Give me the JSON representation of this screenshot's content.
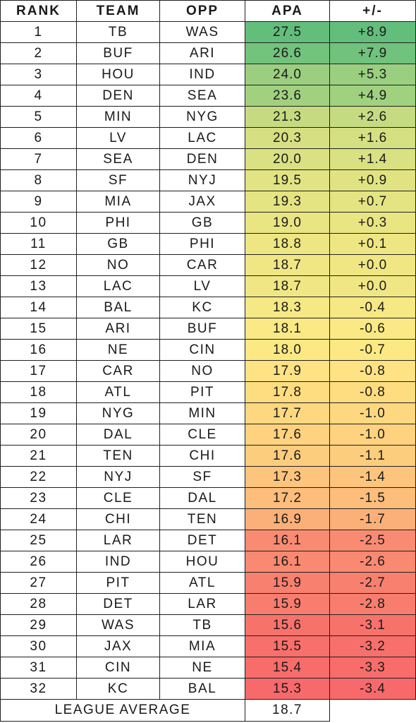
{
  "headers": [
    "RANK",
    "TEAM",
    "OPP",
    "APA",
    "+/-"
  ],
  "rows": [
    {
      "rank": "1",
      "team": "TB",
      "opp": "WAS",
      "apa": "27.5",
      "pm": "+8.9",
      "apa_color": "#63be7b",
      "pm_color": "#63be7b"
    },
    {
      "rank": "2",
      "team": "BUF",
      "opp": "ARI",
      "apa": "26.6",
      "pm": "+7.9",
      "apa_color": "#72c37c",
      "pm_color": "#70c27c"
    },
    {
      "rank": "3",
      "team": "HOU",
      "opp": "IND",
      "apa": "24.0",
      "pm": "+5.3",
      "apa_color": "#9bcf7f",
      "pm_color": "#99cf7f"
    },
    {
      "rank": "4",
      "team": "DEN",
      "opp": "SEA",
      "apa": "23.6",
      "pm": "+4.9",
      "apa_color": "#a1d17f",
      "pm_color": "#a0d17f"
    },
    {
      "rank": "5",
      "team": "MIN",
      "opp": "NYG",
      "apa": "21.3",
      "pm": "+2.6",
      "apa_color": "#c6db81",
      "pm_color": "#c5db81"
    },
    {
      "rank": "6",
      "team": "LV",
      "opp": "LAC",
      "apa": "20.3",
      "pm": "+1.6",
      "apa_color": "#d6e082",
      "pm_color": "#d5e082"
    },
    {
      "rank": "7",
      "team": "SEA",
      "opp": "DEN",
      "apa": "20.0",
      "pm": "+1.4",
      "apa_color": "#dae182",
      "pm_color": "#d9e182"
    },
    {
      "rank": "8",
      "team": "SF",
      "opp": "NYJ",
      "apa": "19.5",
      "pm": "+0.9",
      "apa_color": "#e2e383",
      "pm_color": "#e1e383"
    },
    {
      "rank": "9",
      "team": "MIA",
      "opp": "JAX",
      "apa": "19.3",
      "pm": "+0.7",
      "apa_color": "#e5e483",
      "pm_color": "#e4e483"
    },
    {
      "rank": "10",
      "team": "PHI",
      "opp": "GB",
      "apa": "19.0",
      "pm": "+0.3",
      "apa_color": "#eae583",
      "pm_color": "#eae583"
    },
    {
      "rank": "11",
      "team": "GB",
      "opp": "PHI",
      "apa": "18.8",
      "pm": "+0.1",
      "apa_color": "#eee683",
      "pm_color": "#eee683"
    },
    {
      "rank": "12",
      "team": "NO",
      "opp": "CAR",
      "apa": "18.7",
      "pm": "+0.0",
      "apa_color": "#f0e784",
      "pm_color": "#f0e784"
    },
    {
      "rank": "13",
      "team": "LAC",
      "opp": "LV",
      "apa": "18.7",
      "pm": "+0.0",
      "apa_color": "#f0e784",
      "pm_color": "#f0e784"
    },
    {
      "rank": "14",
      "team": "BAL",
      "opp": "KC",
      "apa": "18.3",
      "pm": "-0.4",
      "apa_color": "#f6e884",
      "pm_color": "#f6e884"
    },
    {
      "rank": "15",
      "team": "ARI",
      "opp": "BUF",
      "apa": "18.1",
      "pm": "-0.6",
      "apa_color": "#fae984",
      "pm_color": "#fae984"
    },
    {
      "rank": "16",
      "team": "NE",
      "opp": "CIN",
      "apa": "18.0",
      "pm": "-0.7",
      "apa_color": "#fde984",
      "pm_color": "#fde984"
    },
    {
      "rank": "17",
      "team": "CAR",
      "opp": "NO",
      "apa": "17.9",
      "pm": "-0.8",
      "apa_color": "#fee283",
      "pm_color": "#fee283"
    },
    {
      "rank": "18",
      "team": "ATL",
      "opp": "PIT",
      "apa": "17.8",
      "pm": "-0.8",
      "apa_color": "#fedd81",
      "pm_color": "#fedd81"
    },
    {
      "rank": "19",
      "team": "NYG",
      "opp": "MIN",
      "apa": "17.7",
      "pm": "-1.0",
      "apa_color": "#fed880",
      "pm_color": "#fed880"
    },
    {
      "rank": "20",
      "team": "DAL",
      "opp": "CLE",
      "apa": "17.6",
      "pm": "-1.0",
      "apa_color": "#fed27f",
      "pm_color": "#fed27f"
    },
    {
      "rank": "21",
      "team": "TEN",
      "opp": "CHI",
      "apa": "17.6",
      "pm": "-1.1",
      "apa_color": "#fdcd7e",
      "pm_color": "#fdcd7e"
    },
    {
      "rank": "22",
      "team": "NYJ",
      "opp": "SF",
      "apa": "17.3",
      "pm": "-1.4",
      "apa_color": "#fdc47d",
      "pm_color": "#fdc47d"
    },
    {
      "rank": "23",
      "team": "CLE",
      "opp": "DAL",
      "apa": "17.2",
      "pm": "-1.5",
      "apa_color": "#fdbd7b",
      "pm_color": "#fdbd7b"
    },
    {
      "rank": "24",
      "team": "CHI",
      "opp": "TEN",
      "apa": "16.9",
      "pm": "-1.7",
      "apa_color": "#fcb079",
      "pm_color": "#fcb079"
    },
    {
      "rank": "25",
      "team": "LAR",
      "opp": "DET",
      "apa": "16.1",
      "pm": "-2.5",
      "apa_color": "#f98b73",
      "pm_color": "#f98b73"
    },
    {
      "rank": "26",
      "team": "IND",
      "opp": "HOU",
      "apa": "16.1",
      "pm": "-2.6",
      "apa_color": "#f98971",
      "pm_color": "#f98971"
    },
    {
      "rank": "27",
      "team": "PIT",
      "opp": "ATL",
      "apa": "15.9",
      "pm": "-2.7",
      "apa_color": "#f8806f",
      "pm_color": "#f8806f"
    },
    {
      "rank": "28",
      "team": "DET",
      "opp": "LAR",
      "apa": "15.9",
      "pm": "-2.8",
      "apa_color": "#f87d6e",
      "pm_color": "#f87d6e"
    },
    {
      "rank": "29",
      "team": "WAS",
      "opp": "TB",
      "apa": "15.6",
      "pm": "-3.1",
      "apa_color": "#f8726c",
      "pm_color": "#f8726c"
    },
    {
      "rank": "30",
      "team": "JAX",
      "opp": "MIA",
      "apa": "15.5",
      "pm": "-3.2",
      "apa_color": "#f86f6b",
      "pm_color": "#f86f6b"
    },
    {
      "rank": "31",
      "team": "CIN",
      "opp": "NE",
      "apa": "15.4",
      "pm": "-3.3",
      "apa_color": "#f86c6a",
      "pm_color": "#f86c6a"
    },
    {
      "rank": "32",
      "team": "KC",
      "opp": "BAL",
      "apa": "15.3",
      "pm": "-3.4",
      "apa_color": "#f8696b",
      "pm_color": "#f8696b"
    }
  ],
  "footer": {
    "label": "LEAGUE AVERAGE",
    "value": "18.7"
  }
}
